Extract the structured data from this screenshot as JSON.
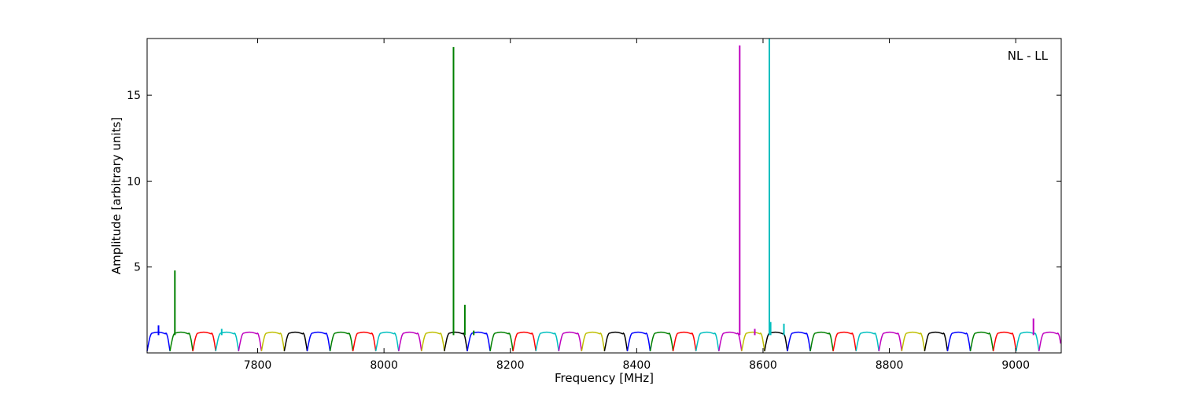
{
  "chart_data": {
    "type": "line",
    "title": "",
    "xlabel": "Frequency [MHz]",
    "ylabel": "Amplitude [arbitrary units]",
    "annotation": "NL - LL",
    "xlim": [
      7625,
      9072
    ],
    "ylim": [
      0,
      18.3
    ],
    "xticks": [
      7800,
      8000,
      8200,
      8400,
      8600,
      8800,
      9000
    ],
    "yticks": [
      5,
      10,
      15
    ],
    "grid": false,
    "legend": "none",
    "channel_width_mhz": 36.2,
    "colors": [
      "#0000ff",
      "#008000",
      "#ff0000",
      "#00bfbf",
      "#bf00bf",
      "#bfbf00",
      "#000000"
    ],
    "baseline": {
      "start_mhz": 7625,
      "num_channels": 40,
      "plateau_level": 1.15,
      "trough_level": 0.1
    },
    "spikes": [
      {
        "x": 7643,
        "y": 1.6,
        "color": "#0000ff"
      },
      {
        "x": 7669,
        "y": 4.8,
        "color": "#008000"
      },
      {
        "x": 7743,
        "y": 1.4,
        "color": "#00bfbf"
      },
      {
        "x": 8110,
        "y": 17.8,
        "color": "#008000"
      },
      {
        "x": 8128,
        "y": 2.8,
        "color": "#008000"
      },
      {
        "x": 8142,
        "y": 1.3,
        "color": "#008000"
      },
      {
        "x": 8563,
        "y": 17.9,
        "color": "#bf00bf"
      },
      {
        "x": 8587,
        "y": 1.4,
        "color": "#bf00bf"
      },
      {
        "x": 8610,
        "y": 18.3,
        "color": "#00bfbf"
      },
      {
        "x": 8612,
        "y": 1.8,
        "color": "#00bfbf"
      },
      {
        "x": 8633,
        "y": 1.7,
        "color": "#00bfbf"
      },
      {
        "x": 9028,
        "y": 2.0,
        "color": "#bf00bf"
      }
    ]
  }
}
